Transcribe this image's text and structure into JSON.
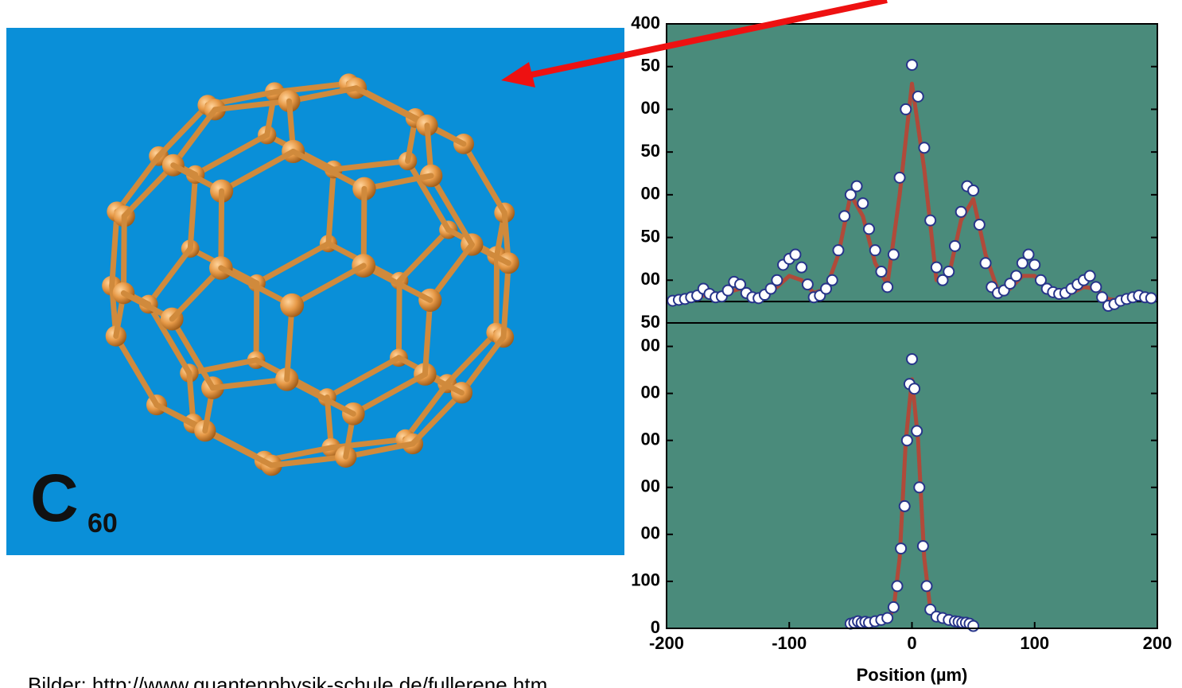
{
  "chart_data": [
    {
      "type": "scatter",
      "background": "#4a8b7b",
      "marker_color": "#ffffff",
      "edge_color": "#27358a",
      "baseline": 75,
      "baseline_color": "#000000",
      "xlim": [
        -200,
        200
      ],
      "ylim": [
        50,
        400
      ],
      "yticks": [
        400,
        {
          "value": 350,
          "label": "50"
        },
        {
          "value": 300,
          "label": "00"
        },
        {
          "value": 250,
          "label": "50"
        },
        {
          "value": 200,
          "label": "00"
        },
        {
          "value": 150,
          "label": "50"
        },
        {
          "value": 100,
          "label": "00"
        },
        {
          "value": 50,
          "label": "50"
        }
      ],
      "x": [
        -195,
        -190,
        -185,
        -180,
        -175,
        -170,
        -165,
        -160,
        -155,
        -150,
        -145,
        -140,
        -135,
        -130,
        -125,
        -120,
        -115,
        -110,
        -105,
        -100,
        -95,
        -90,
        -85,
        -80,
        -75,
        -70,
        -65,
        -60,
        -55,
        -50,
        -45,
        -40,
        -35,
        -30,
        -25,
        -20,
        -15,
        -10,
        -5,
        0,
        5,
        10,
        15,
        20,
        25,
        30,
        35,
        40,
        45,
        50,
        55,
        60,
        65,
        70,
        75,
        80,
        85,
        90,
        95,
        100,
        105,
        110,
        115,
        120,
        125,
        130,
        135,
        140,
        145,
        150,
        155,
        160,
        165,
        170,
        175,
        180,
        185,
        190,
        195
      ],
      "values": [
        76,
        77,
        78,
        80,
        82,
        90,
        84,
        80,
        81,
        88,
        98,
        95,
        85,
        80,
        79,
        83,
        90,
        100,
        118,
        125,
        130,
        115,
        95,
        80,
        82,
        90,
        100,
        135,
        175,
        200,
        210,
        190,
        160,
        135,
        110,
        92,
        130,
        220,
        300,
        352,
        315,
        255,
        170,
        115,
        100,
        110,
        140,
        180,
        210,
        205,
        165,
        120,
        92,
        85,
        88,
        96,
        105,
        120,
        130,
        118,
        100,
        90,
        86,
        84,
        85,
        90,
        95,
        100,
        105,
        92,
        80,
        70,
        72,
        76,
        78,
        80,
        82,
        80,
        79
      ],
      "fit": {
        "color": "#b04a3a",
        "x": [
          -200,
          -190,
          -180,
          -170,
          -160,
          -150,
          -140,
          -130,
          -120,
          -110,
          -100,
          -90,
          -80,
          -70,
          -60,
          -50,
          -40,
          -30,
          -20,
          -10,
          0,
          10,
          20,
          30,
          40,
          50,
          60,
          70,
          80,
          90,
          100,
          110,
          120,
          130,
          140,
          150,
          160,
          170,
          180,
          190,
          200
        ],
        "values": [
          76,
          78,
          80,
          82,
          80,
          86,
          90,
          82,
          82,
          92,
          105,
          100,
          85,
          90,
          130,
          200,
          175,
          120,
          95,
          200,
          330,
          230,
          100,
          105,
          170,
          195,
          130,
          88,
          90,
          105,
          105,
          90,
          82,
          85,
          92,
          90,
          78,
          76,
          78,
          80,
          80
        ]
      }
    },
    {
      "type": "scatter",
      "background": "#4a8b7b",
      "marker_color": "#ffffff",
      "edge_color": "#27358a",
      "xlim": [
        -200,
        200
      ],
      "ylim": [
        0,
        650
      ],
      "yticks": [
        {
          "value": 600,
          "label": "00"
        },
        {
          "value": 500,
          "label": "00"
        },
        {
          "value": 400,
          "label": "00"
        },
        {
          "value": 300,
          "label": "00"
        },
        {
          "value": 200,
          "label": "00"
        },
        100,
        0
      ],
      "xticks": [
        -200,
        -100,
        0,
        100,
        200
      ],
      "xlabel": "Position (µm)",
      "x": [
        -50,
        -47,
        -44,
        -41,
        -38,
        -35,
        -30,
        -25,
        -20,
        -15,
        -12,
        -9,
        -6,
        -4,
        -2,
        0,
        2,
        4,
        6,
        9,
        12,
        15,
        20,
        25,
        30,
        35,
        38,
        41,
        44,
        47,
        50
      ],
      "values": [
        10,
        12,
        15,
        12,
        14,
        12,
        15,
        18,
        22,
        45,
        90,
        170,
        260,
        400,
        520,
        573,
        510,
        420,
        300,
        175,
        90,
        40,
        25,
        22,
        18,
        15,
        14,
        12,
        12,
        10,
        5
      ],
      "fit": {
        "color": "#b04a3a",
        "x": [
          -40,
          -30,
          -20,
          -15,
          -10,
          -5,
          0,
          5,
          10,
          15,
          20,
          30,
          40
        ],
        "values": [
          10,
          12,
          20,
          40,
          150,
          400,
          530,
          400,
          150,
          40,
          20,
          12,
          10
        ]
      }
    }
  ],
  "molecule_label": {
    "text": "C",
    "subscript": "60"
  },
  "footer": "Bilder: http://www.quantenphysik-schule.de/fullerene.htm"
}
